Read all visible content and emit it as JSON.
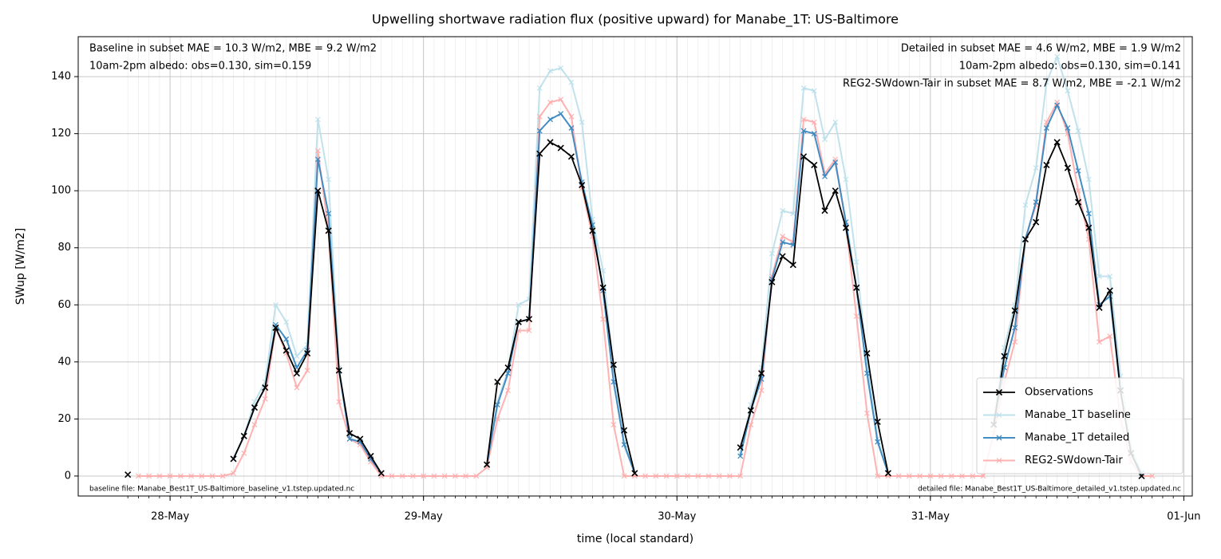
{
  "chart_data": {
    "type": "line",
    "title": "Upwelling shortwave radiation flux (positive upward) for Manabe_1T: US-Baltimore",
    "xlabel": "time (local standard)",
    "ylabel": "SWup [W/m2]",
    "x": [
      -4,
      -3,
      -2,
      -1,
      0,
      1,
      2,
      3,
      4,
      5,
      6,
      7,
      8,
      9,
      10,
      11,
      12,
      13,
      14,
      15,
      16,
      17,
      18,
      19,
      20,
      21,
      22,
      23,
      24,
      25,
      26,
      27,
      28,
      29,
      30,
      31,
      32,
      33,
      34,
      35,
      36,
      37,
      38,
      39,
      40,
      41,
      42,
      43,
      44,
      45,
      46,
      47,
      48,
      49,
      50,
      51,
      52,
      53,
      54,
      55,
      56,
      57,
      58,
      59,
      60,
      61,
      62,
      63,
      64,
      65,
      66,
      67,
      68,
      69,
      70,
      71,
      72,
      73,
      74,
      75,
      76,
      77,
      78,
      79,
      80,
      81,
      82,
      83,
      84,
      85,
      86,
      87,
      88,
      89,
      90,
      91,
      92,
      93,
      94,
      95
    ],
    "series": [
      {
        "name": "Observations",
        "color": "#000000",
        "values": [
          0.5,
          null,
          null,
          null,
          null,
          null,
          null,
          null,
          null,
          null,
          6,
          14,
          24,
          31,
          52,
          44,
          36,
          43,
          100,
          86,
          37,
          15,
          13,
          7,
          1,
          null,
          null,
          null,
          null,
          null,
          null,
          null,
          null,
          null,
          4,
          33,
          38,
          54,
          55,
          113,
          117,
          115,
          112,
          102,
          86,
          66,
          39,
          16,
          1,
          null,
          null,
          null,
          null,
          null,
          null,
          null,
          null,
          null,
          10,
          23,
          36,
          68,
          77,
          74,
          112,
          109,
          93,
          100,
          87,
          66,
          43,
          19,
          1,
          null,
          null,
          null,
          null,
          null,
          null,
          null,
          null,
          null,
          18,
          42,
          58,
          83,
          89,
          109,
          117,
          108,
          96,
          87,
          59,
          65,
          30,
          8,
          0,
          null,
          null,
          null
        ]
      },
      {
        "name": "Manabe_1T baseline",
        "color": "#b9dfea",
        "values": [
          null,
          null,
          null,
          null,
          null,
          null,
          null,
          null,
          null,
          null,
          6,
          14,
          26,
          33,
          60,
          54,
          42,
          46,
          125,
          104,
          38,
          13,
          12,
          6,
          1,
          null,
          null,
          null,
          null,
          null,
          null,
          null,
          null,
          null,
          4,
          26,
          37,
          60,
          62,
          136,
          142,
          143,
          138,
          124,
          90,
          72,
          38,
          12,
          1,
          null,
          null,
          null,
          null,
          null,
          null,
          null,
          null,
          null,
          8,
          25,
          38,
          78,
          93,
          92,
          136,
          135,
          118,
          124,
          104,
          75,
          40,
          13,
          1,
          null,
          null,
          null,
          null,
          null,
          null,
          null,
          null,
          null,
          20,
          45,
          60,
          95,
          108,
          138,
          147,
          135,
          121,
          104,
          70,
          70,
          35,
          10,
          1,
          null,
          null,
          null
        ]
      },
      {
        "name": "Manabe_1T detailed",
        "color": "#3a87c0",
        "values": [
          null,
          null,
          null,
          null,
          null,
          null,
          null,
          null,
          null,
          null,
          6,
          14,
          24,
          31,
          53,
          48,
          38,
          44,
          111,
          92,
          37,
          13,
          12,
          6,
          1,
          null,
          null,
          null,
          null,
          null,
          null,
          null,
          null,
          null,
          4,
          25,
          36,
          54,
          55,
          121,
          125,
          127,
          122,
          103,
          88,
          65,
          33,
          11,
          1,
          null,
          null,
          null,
          null,
          null,
          null,
          null,
          null,
          null,
          7,
          23,
          34,
          69,
          82,
          81,
          121,
          120,
          105,
          110,
          89,
          66,
          36,
          12,
          1,
          null,
          null,
          null,
          null,
          null,
          null,
          null,
          null,
          null,
          18,
          38,
          52,
          83,
          96,
          122,
          130,
          122,
          107,
          92,
          60,
          63,
          30,
          8,
          1,
          null,
          null,
          null
        ]
      },
      {
        "name": "REG2-SWdown-Tair",
        "color": "#ffaaaa",
        "values": [
          null,
          0,
          0,
          0,
          0,
          0,
          0,
          0,
          0,
          0,
          1,
          8,
          18,
          27,
          52,
          43,
          31,
          37,
          114,
          86,
          26,
          13,
          11,
          5,
          0,
          0,
          0,
          0,
          0,
          0,
          0,
          0,
          0,
          0,
          3,
          20,
          30,
          51,
          51,
          126,
          131,
          132,
          126,
          101,
          84,
          55,
          18,
          0,
          0,
          0,
          0,
          0,
          0,
          0,
          0,
          0,
          0,
          0,
          0,
          18,
          30,
          70,
          84,
          82,
          125,
          124,
          106,
          111,
          88,
          56,
          22,
          0,
          0,
          0,
          0,
          0,
          0,
          0,
          0,
          0,
          0,
          0,
          15,
          33,
          47,
          83,
          95,
          124,
          131,
          120,
          100,
          83,
          47,
          49,
          20,
          5,
          0,
          0,
          null,
          null
        ]
      }
    ],
    "xlim": [
      -8.7,
      96.8
    ],
    "xticks": [
      {
        "value": 0,
        "label": "28-May"
      },
      {
        "value": 24,
        "label": "29-May"
      },
      {
        "value": 48,
        "label": "30-May"
      },
      {
        "value": 72,
        "label": "31-May"
      },
      {
        "value": 96,
        "label": "01-Jun"
      }
    ],
    "ylim": [
      -7,
      154
    ],
    "yticks": [
      0,
      20,
      40,
      60,
      80,
      100,
      120,
      140
    ],
    "grid": true,
    "minor_grid": true,
    "legend": "lower right",
    "annotations": [
      {
        "text": "Baseline in subset MAE = 10.3 W/m2, MBE = 9.2 W/m2",
        "color": "#add8e6",
        "corner": "upper left"
      },
      {
        "text": "10am-2pm albedo: obs=0.130, sim=0.159",
        "color": "#000000",
        "corner": "upper left"
      },
      {
        "text": "Detailed in subset MAE = 4.6 W/m2, MBE = 1.9 W/m2",
        "color": "#1f77b4",
        "corner": "upper right"
      },
      {
        "text": "10am-2pm albedo: obs=0.130, sim=0.141",
        "color": "#000000",
        "corner": "upper right"
      },
      {
        "text": "REG2-SWdown-Tair in subset MAE = 8.7 W/m2, MBE = -2.1 W/m2",
        "color": "#ff0000",
        "corner": "upper right"
      },
      {
        "text": "baseline file: Manabe_Best1T_US-Baltimore_baseline_v1.tstep.updated.nc",
        "color": "#000000",
        "corner": "lower left"
      },
      {
        "text": "detailed file: Manabe_Best1T_US-Baltimore_detailed_v1.tstep.updated.nc",
        "color": "#000000",
        "corner": "lower right"
      }
    ]
  }
}
